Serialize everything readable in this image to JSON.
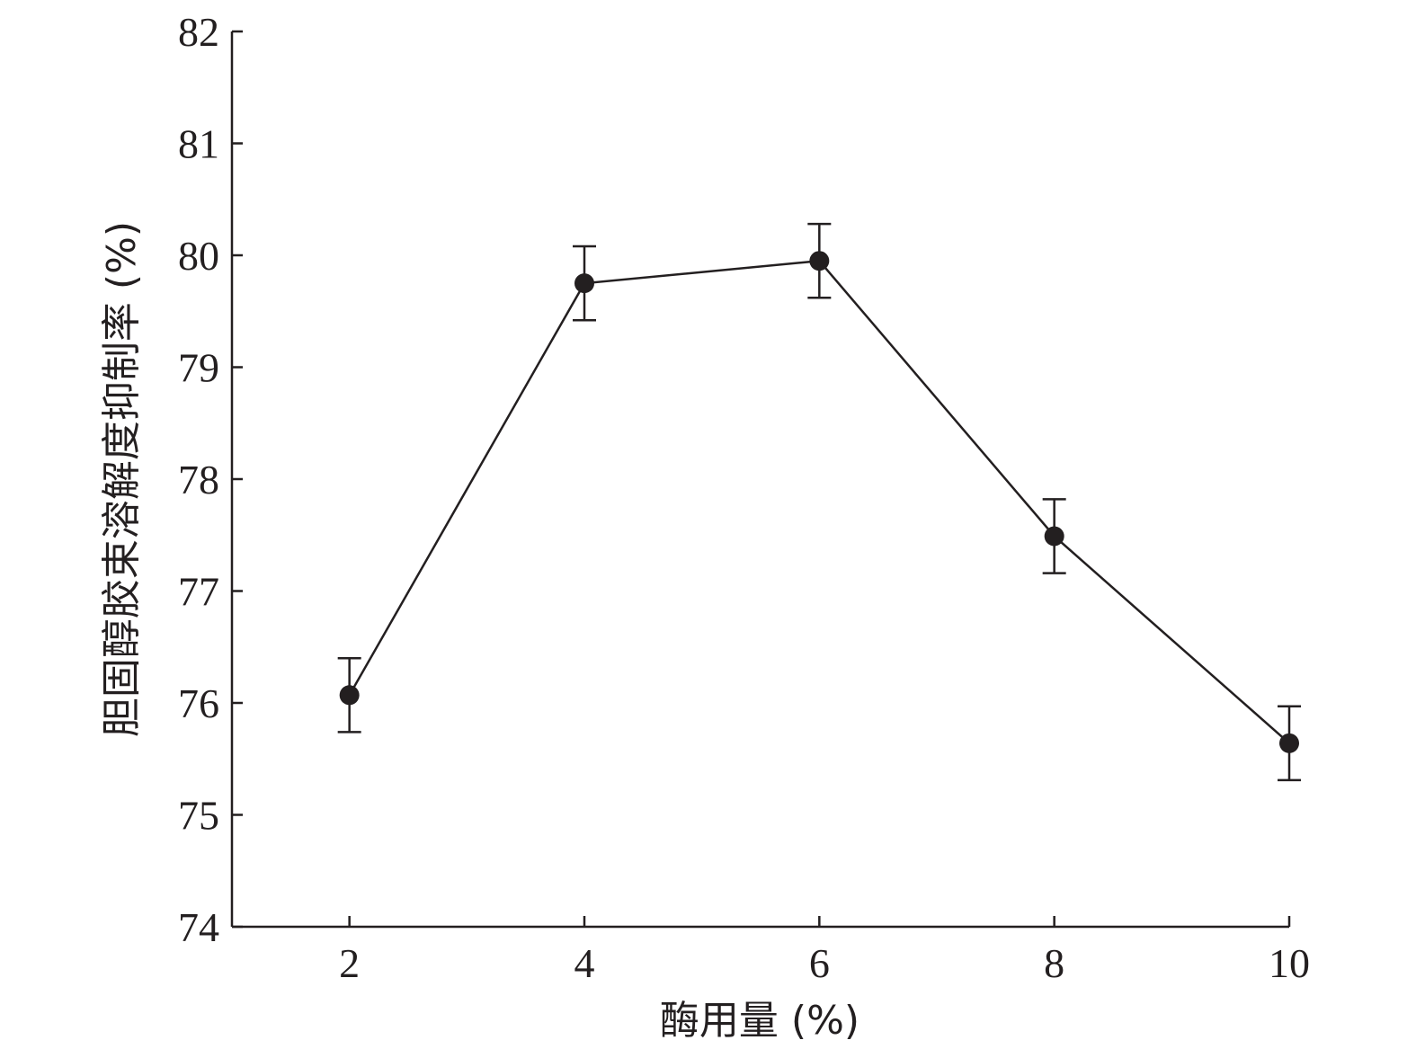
{
  "chart_data": {
    "type": "line",
    "title": "",
    "xlabel": "酶用量 (%)",
    "ylabel": "胆固醇胶束溶解度抑制率 (%)",
    "x": [
      2,
      4,
      6,
      8,
      10
    ],
    "xticks": [
      2,
      4,
      6,
      8,
      10
    ],
    "xlim": [
      1,
      10
    ],
    "ylim": [
      74,
      82
    ],
    "yticks": [
      74,
      75,
      76,
      77,
      78,
      79,
      80,
      81,
      82
    ],
    "grid": false,
    "legend": "none",
    "series": [
      {
        "values": [
          76.07,
          79.75,
          79.95,
          77.49,
          75.64
        ],
        "errors": [
          0.33,
          0.33,
          0.33,
          0.33,
          0.33
        ],
        "color": "#231f20",
        "marker": "filled-circle"
      }
    ]
  }
}
